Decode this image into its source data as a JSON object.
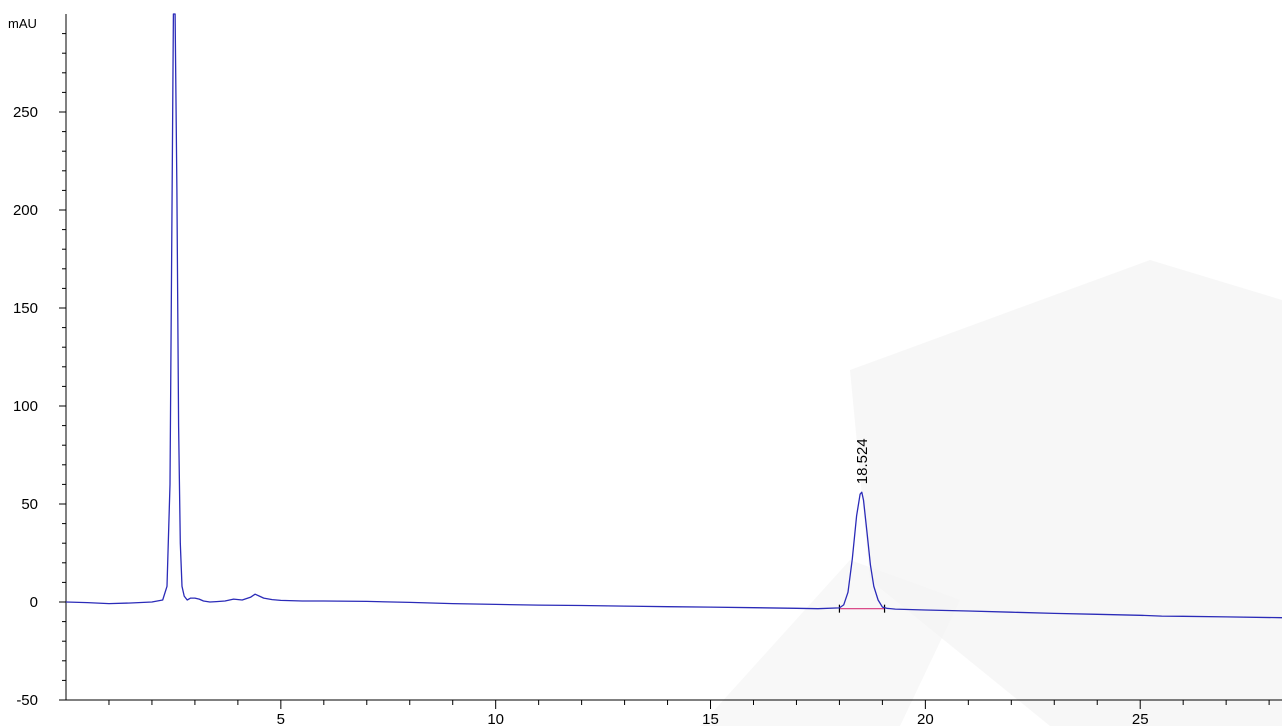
{
  "chart_data": {
    "type": "line",
    "title": "",
    "xlabel": "",
    "ylabel": "mAU",
    "xlim": [
      0,
      28.3
    ],
    "ylim": [
      -50,
      300
    ],
    "x_ticks": [
      5,
      10,
      15,
      20,
      25
    ],
    "y_ticks": [
      -50,
      0,
      50,
      100,
      150,
      200,
      250
    ],
    "grid": false,
    "legend": "none",
    "colors": {
      "trace": "#2b2bb8",
      "baseline": "#d6337a",
      "axis": "#000000"
    },
    "series": [
      {
        "x": [
          0,
          0.5,
          1.0,
          1.5,
          2.0,
          2.25,
          2.35,
          2.42,
          2.46,
          2.5,
          2.54,
          2.58,
          2.62,
          2.66,
          2.7,
          2.75,
          2.82,
          2.9,
          3.0,
          3.1,
          3.2,
          3.35,
          3.5,
          3.7,
          3.9,
          4.1,
          4.3,
          4.4,
          4.5,
          4.6,
          4.8,
          5.0,
          5.5,
          6.0,
          7.0,
          8.0,
          9.0,
          10.0,
          11.0,
          12.0,
          13.0,
          14.0,
          15.0,
          16.0,
          17.0,
          17.5,
          18.0,
          18.1,
          18.2,
          18.3,
          18.4,
          18.48,
          18.52,
          18.56,
          18.64,
          18.72,
          18.8,
          18.9,
          19.0,
          19.1,
          19.3,
          20.0,
          21.0,
          22.0,
          23.0,
          24.0,
          25.0,
          25.5,
          26.0,
          27.0,
          28.3
        ],
        "y": [
          0,
          -0.3,
          -0.8,
          -0.5,
          0,
          1,
          8,
          60,
          180,
          300,
          300,
          210,
          90,
          30,
          8,
          3,
          1,
          2,
          2,
          1.5,
          0.5,
          0,
          0.2,
          0.5,
          1.5,
          1,
          2.5,
          4,
          3,
          2,
          1.2,
          0.8,
          0.5,
          0.5,
          0.3,
          -0.2,
          -0.8,
          -1.2,
          -1.6,
          -1.8,
          -2.1,
          -2.4,
          -2.6,
          -2.9,
          -3.2,
          -3.4,
          -3.0,
          -1.5,
          5,
          22,
          44,
          55,
          56,
          52,
          36,
          19,
          8,
          1,
          -2.6,
          -3.2,
          -3.6,
          -4.1,
          -4.6,
          -5.2,
          -5.8,
          -6.3,
          -6.8,
          -7.2,
          -7.3,
          -7.6,
          -8.0
        ]
      }
    ],
    "peak_annotations": [
      {
        "label": "18.524",
        "x": 18.524,
        "y": 56
      }
    ],
    "integration_baseline": {
      "x_start": 18.0,
      "x_end": 19.05,
      "y": -3.4
    }
  }
}
